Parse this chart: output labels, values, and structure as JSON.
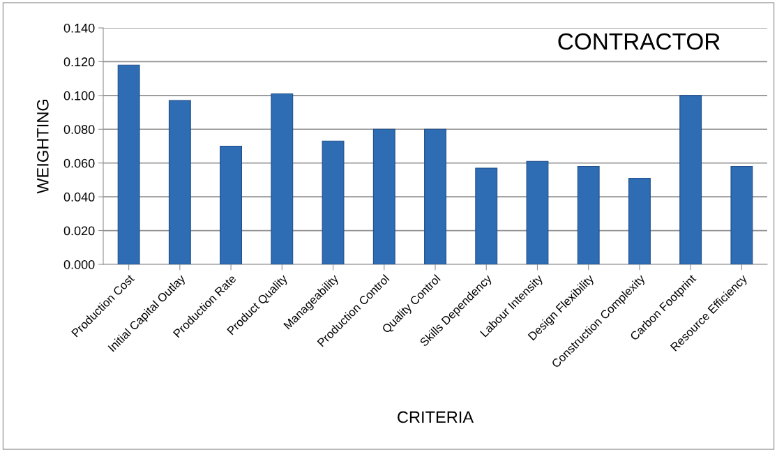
{
  "chart_data": {
    "type": "bar",
    "title": "CONTRACTOR",
    "xlabel": "CRITERIA",
    "ylabel": "WEIGHTING",
    "categories": [
      "Production Cost",
      "Initial Capital Outlay",
      "Production Rate",
      "Product Quality",
      "Manageability",
      "Production Control",
      "Quality Control",
      "Skills Dependency",
      "Labour Intensity",
      "Design Flexibility",
      "Construction Complexity",
      "Carbon Footprint",
      "Resource Efficiency"
    ],
    "values": [
      0.118,
      0.097,
      0.07,
      0.101,
      0.073,
      0.08,
      0.08,
      0.057,
      0.061,
      0.058,
      0.051,
      0.1,
      0.058
    ],
    "color": "#2e6cb4",
    "ylim": [
      0,
      0.14
    ],
    "yticks": [
      {
        "value": 0,
        "label": "0.000"
      },
      {
        "value": 0.02,
        "label": "0.020"
      },
      {
        "value": 0.04,
        "label": "0.040"
      },
      {
        "value": 0.06,
        "label": "0.060"
      },
      {
        "value": 0.08,
        "label": "0.080"
      },
      {
        "value": 0.1,
        "label": "0.100"
      },
      {
        "value": 0.12,
        "label": "0.120"
      },
      {
        "value": 0.14,
        "label": "0.140"
      }
    ],
    "grid": "y"
  }
}
